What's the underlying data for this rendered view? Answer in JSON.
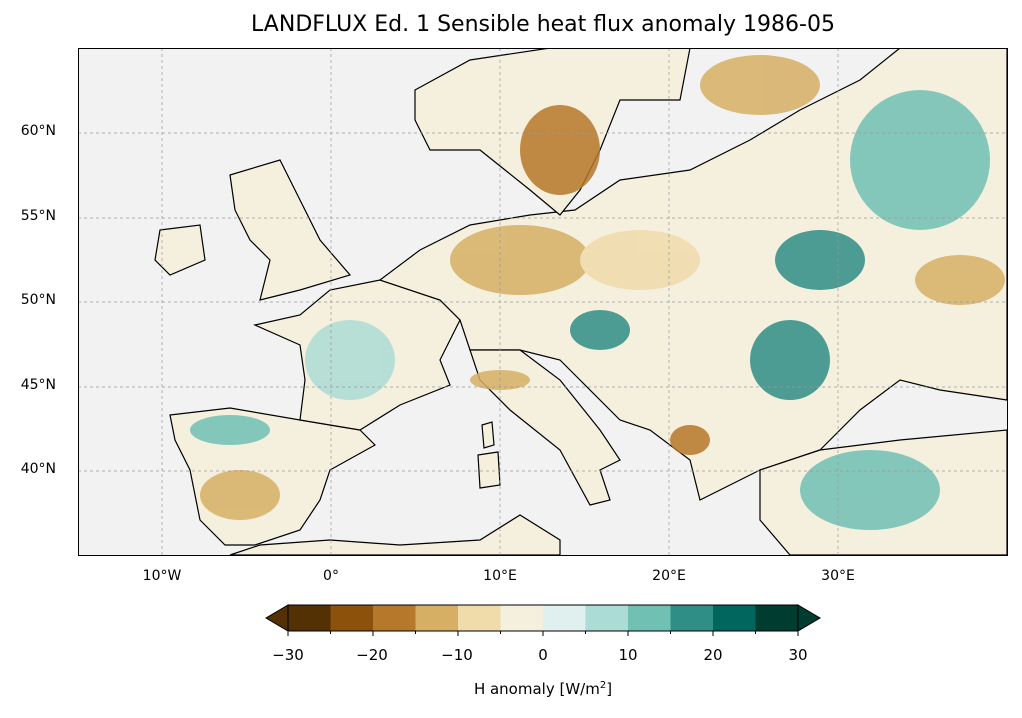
{
  "title": "LANDFLUX Ed. 1 Sensible heat flux anomaly 1986-05",
  "map": {
    "extent": {
      "lon": [
        -15,
        40
      ],
      "lat": [
        35,
        65
      ]
    },
    "ocean_color": "#f2f2f2",
    "lat_labels": [
      "60°N",
      "55°N",
      "50°N",
      "45°N",
      "40°N"
    ],
    "lon_labels": [
      "10°W",
      "0°",
      "10°E",
      "20°E",
      "30°E"
    ]
  },
  "colorbar": {
    "label": "H anomaly [W/m",
    "label_sup": "2",
    "label_end": "]",
    "ticks": [
      "−30",
      "−20",
      "−10",
      "0",
      "10",
      "20",
      "30"
    ],
    "levels": [
      -30,
      -25,
      -20,
      -15,
      -10,
      -5,
      0,
      5,
      10,
      15,
      20,
      25,
      30
    ],
    "extend": "both",
    "colors": [
      "#543005",
      "#8c510a",
      "#b6782a",
      "#d6af64",
      "#f0dcab",
      "#f5f0de",
      "#dff0ee",
      "#abdcd5",
      "#70c0b4",
      "#2f8e86",
      "#01665e",
      "#003c30"
    ]
  }
}
